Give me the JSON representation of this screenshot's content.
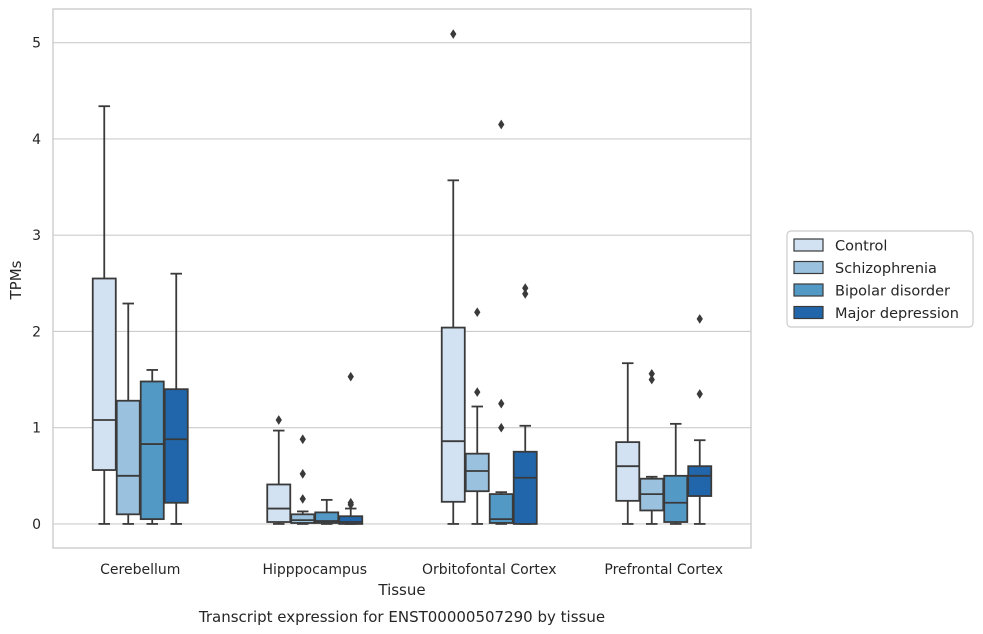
{
  "chart_data": {
    "type": "box",
    "title": "",
    "caption": "Transcript expression for ENST00000507290 by tissue",
    "xlabel": "Tissue",
    "ylabel": "TPMs",
    "ylim": [
      -0.25,
      5.35
    ],
    "yticks": [
      0,
      1,
      2,
      3,
      4,
      5
    ],
    "grid": true,
    "legend_position": "right",
    "categories": [
      "Cerebellum",
      "Hipppocampus",
      "Orbitofontal Cortex",
      "Prefrontal Cortex"
    ],
    "series": [
      {
        "name": "Control",
        "color": "#d2e2f2",
        "boxes": [
          {
            "min": 0,
            "q1": 0.56,
            "median": 1.08,
            "q3": 2.55,
            "max": 4.34,
            "outliers": []
          },
          {
            "min": 0,
            "q1": 0.02,
            "median": 0.16,
            "q3": 0.41,
            "max": 0.97,
            "outliers": [
              1.08
            ]
          },
          {
            "min": 0,
            "q1": 0.23,
            "median": 0.86,
            "q3": 2.04,
            "max": 3.57,
            "outliers": [
              5.09
            ]
          },
          {
            "min": 0,
            "q1": 0.24,
            "median": 0.6,
            "q3": 0.85,
            "max": 1.67,
            "outliers": []
          }
        ]
      },
      {
        "name": "Schizophrenia",
        "color": "#9ac2de",
        "boxes": [
          {
            "min": 0,
            "q1": 0.1,
            "median": 0.5,
            "q3": 1.28,
            "max": 2.29,
            "outliers": []
          },
          {
            "min": 0,
            "q1": 0.01,
            "median": 0.04,
            "q3": 0.1,
            "max": 0.13,
            "outliers": [
              0.26,
              0.52,
              0.88
            ]
          },
          {
            "min": 0,
            "q1": 0.34,
            "median": 0.55,
            "q3": 0.73,
            "max": 1.22,
            "outliers": [
              1.37,
              2.2
            ]
          },
          {
            "min": 0,
            "q1": 0.14,
            "median": 0.31,
            "q3": 0.47,
            "max": 0.49,
            "outliers": [
              1.5,
              1.56
            ]
          }
        ]
      },
      {
        "name": "Bipolar disorder",
        "color": "#5399c6",
        "boxes": [
          {
            "min": 0,
            "q1": 0.05,
            "median": 0.83,
            "q3": 1.48,
            "max": 1.6,
            "outliers": []
          },
          {
            "min": 0,
            "q1": 0.01,
            "median": 0.03,
            "q3": 0.12,
            "max": 0.25,
            "outliers": []
          },
          {
            "min": 0,
            "q1": 0.01,
            "median": 0.05,
            "q3": 0.31,
            "max": 0.33,
            "outliers": [
              1.0,
              1.25,
              4.15
            ]
          },
          {
            "min": 0,
            "q1": 0.02,
            "median": 0.22,
            "q3": 0.5,
            "max": 1.04,
            "outliers": []
          }
        ]
      },
      {
        "name": "Major depression",
        "color": "#2166ab",
        "boxes": [
          {
            "min": 0,
            "q1": 0.22,
            "median": 0.88,
            "q3": 1.4,
            "max": 2.6,
            "outliers": []
          },
          {
            "min": 0,
            "q1": 0.0,
            "median": 0.02,
            "q3": 0.08,
            "max": 0.16,
            "outliers": [
              0.2,
              0.22,
              1.53
            ]
          },
          {
            "min": 0,
            "q1": 0.0,
            "median": 0.48,
            "q3": 0.75,
            "max": 1.02,
            "outliers": [
              2.39,
              2.45
            ]
          },
          {
            "min": 0,
            "q1": 0.29,
            "median": 0.5,
            "q3": 0.6,
            "max": 0.87,
            "outliers": [
              1.35,
              2.13
            ]
          }
        ]
      }
    ]
  }
}
